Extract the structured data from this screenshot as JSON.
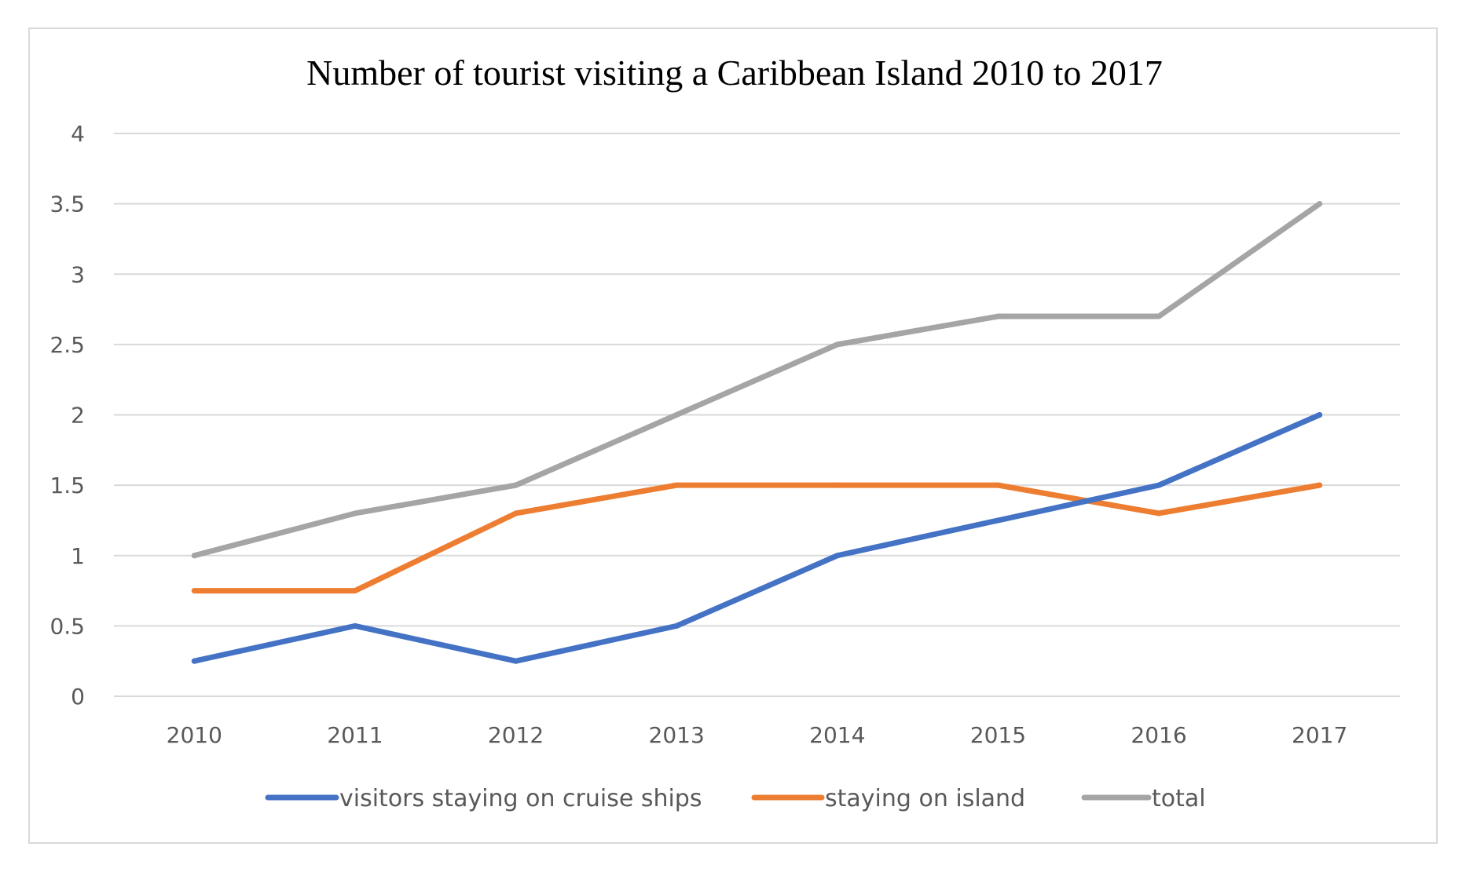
{
  "chart_data": {
    "type": "line",
    "title": "Number of tourist visiting a Caribbean Island 2010 to 2017",
    "xlabel": "",
    "ylabel": "",
    "categories": [
      "2010",
      "2011",
      "2012",
      "2013",
      "2014",
      "2015",
      "2016",
      "2017"
    ],
    "yticks": [
      "0",
      "0.5",
      "1",
      "1.5",
      "2",
      "2.5",
      "3",
      "3.5",
      "4"
    ],
    "ylim": [
      0,
      4
    ],
    "grid": true,
    "legend": "bottom",
    "series": [
      {
        "name": "visitors staying on cruise ships",
        "color": "#4472c4",
        "values": [
          0.25,
          0.5,
          0.25,
          0.5,
          1.0,
          1.25,
          1.5,
          2.0
        ]
      },
      {
        "name": "staying on island",
        "color": "#ed7d31",
        "values": [
          0.75,
          0.75,
          1.3,
          1.5,
          1.5,
          1.5,
          1.3,
          1.5
        ]
      },
      {
        "name": "total",
        "color": "#a5a5a5",
        "values": [
          1.0,
          1.3,
          1.5,
          2.0,
          2.5,
          2.7,
          2.7,
          3.5
        ]
      }
    ]
  }
}
